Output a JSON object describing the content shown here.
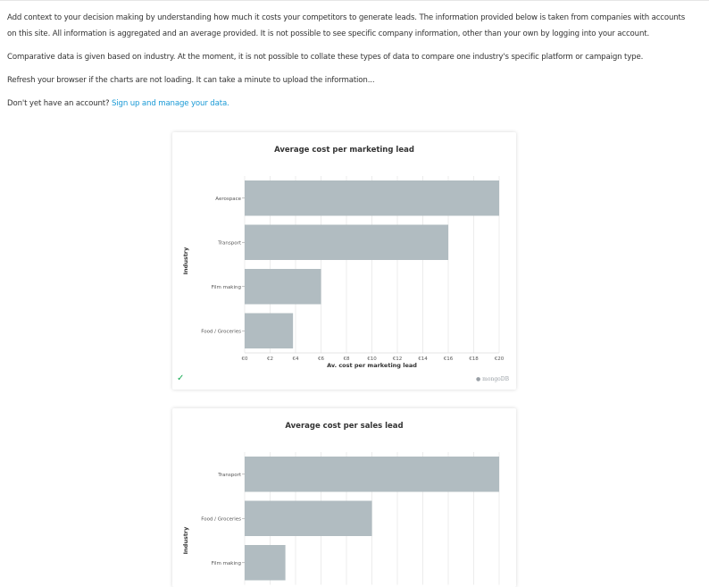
{
  "intro": {
    "para1": "Add context to your decision making by understanding how much it costs your competitors to generate leads. The information provided below is taken from companies with accounts on this site. All information is aggregated and an average provided. It is not possible to see specific company information, other than your own by logging into your account.",
    "para2": "Comparative data is given based on industry. At the moment, it is not possible to collate these types of data to compare one industry's specific platform or campaign type.",
    "para3": "Refresh your browser if the charts are not loading. It can take a minute to upload the information...",
    "para4_text": "Don't yet have an account?",
    "para4_link": "Sign up and manage your data."
  },
  "charts": {
    "marketing": {
      "status_icon": "checkmark-icon",
      "brand": "mongoDB"
    }
  },
  "colors": {
    "bar": "#b1bcc1",
    "link": "#1a9ad6",
    "check": "#13aa52"
  },
  "chart_data": [
    {
      "type": "bar",
      "orientation": "horizontal",
      "title": "Average cost per marketing lead",
      "xlabel": "Av. cost per marketing lead",
      "ylabel": "Industry",
      "categories": [
        "Aerospace",
        "Transport",
        "Film making",
        "Food / Groceries"
      ],
      "values": [
        20,
        16,
        6,
        3.8
      ],
      "xlim": [
        0,
        20
      ],
      "xticks": [
        "€0",
        "€2",
        "€4",
        "€6",
        "€8",
        "€10",
        "€12",
        "€14",
        "€16",
        "€18",
        "€20"
      ],
      "grid": true
    },
    {
      "type": "bar",
      "orientation": "horizontal",
      "title": "Average cost per sales lead",
      "ylabel": "Industry",
      "categories": [
        "Transport",
        "Food / Groceries",
        "Film making"
      ],
      "values": [
        20,
        10,
        3.2
      ],
      "xlim": [
        0,
        20
      ],
      "grid": true
    }
  ]
}
